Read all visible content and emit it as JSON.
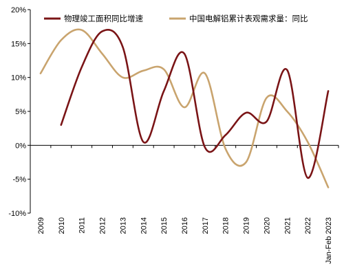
{
  "chart_data": {
    "type": "line",
    "title": "",
    "xlabel": "",
    "ylabel": "",
    "categories": [
      "2009",
      "2010",
      "2011",
      "2012",
      "2013",
      "2014",
      "2015",
      "2016",
      "2017",
      "2018",
      "2019",
      "2020",
      "2021",
      "2022",
      "Jan-Feb 2023"
    ],
    "ylim": [
      -10,
      20
    ],
    "yticks": [
      -10,
      -5,
      0,
      5,
      10,
      15,
      20
    ],
    "ytick_labels": [
      "-10%",
      "-5%",
      "0%",
      "5%",
      "10%",
      "15%",
      "20%"
    ],
    "grid": false,
    "legend_position": "top",
    "smooth": true,
    "series": [
      {
        "name": "物理竣工面积同比增速",
        "color": "#7a1416",
        "values": [
          null,
          3.0,
          11.5,
          16.8,
          14.5,
          0.5,
          8.0,
          13.5,
          -0.3,
          1.5,
          4.8,
          3.5,
          11.1,
          -4.8,
          8.0
        ]
      },
      {
        "name": "中国电解铝累计表观需求量：同比",
        "color": "#c9a46e",
        "values": [
          10.6,
          15.5,
          17.0,
          13.5,
          10.0,
          11.0,
          11.2,
          5.6,
          10.6,
          -0.5,
          -2.5,
          7.0,
          5.0,
          0.5,
          -6.2
        ]
      }
    ]
  }
}
